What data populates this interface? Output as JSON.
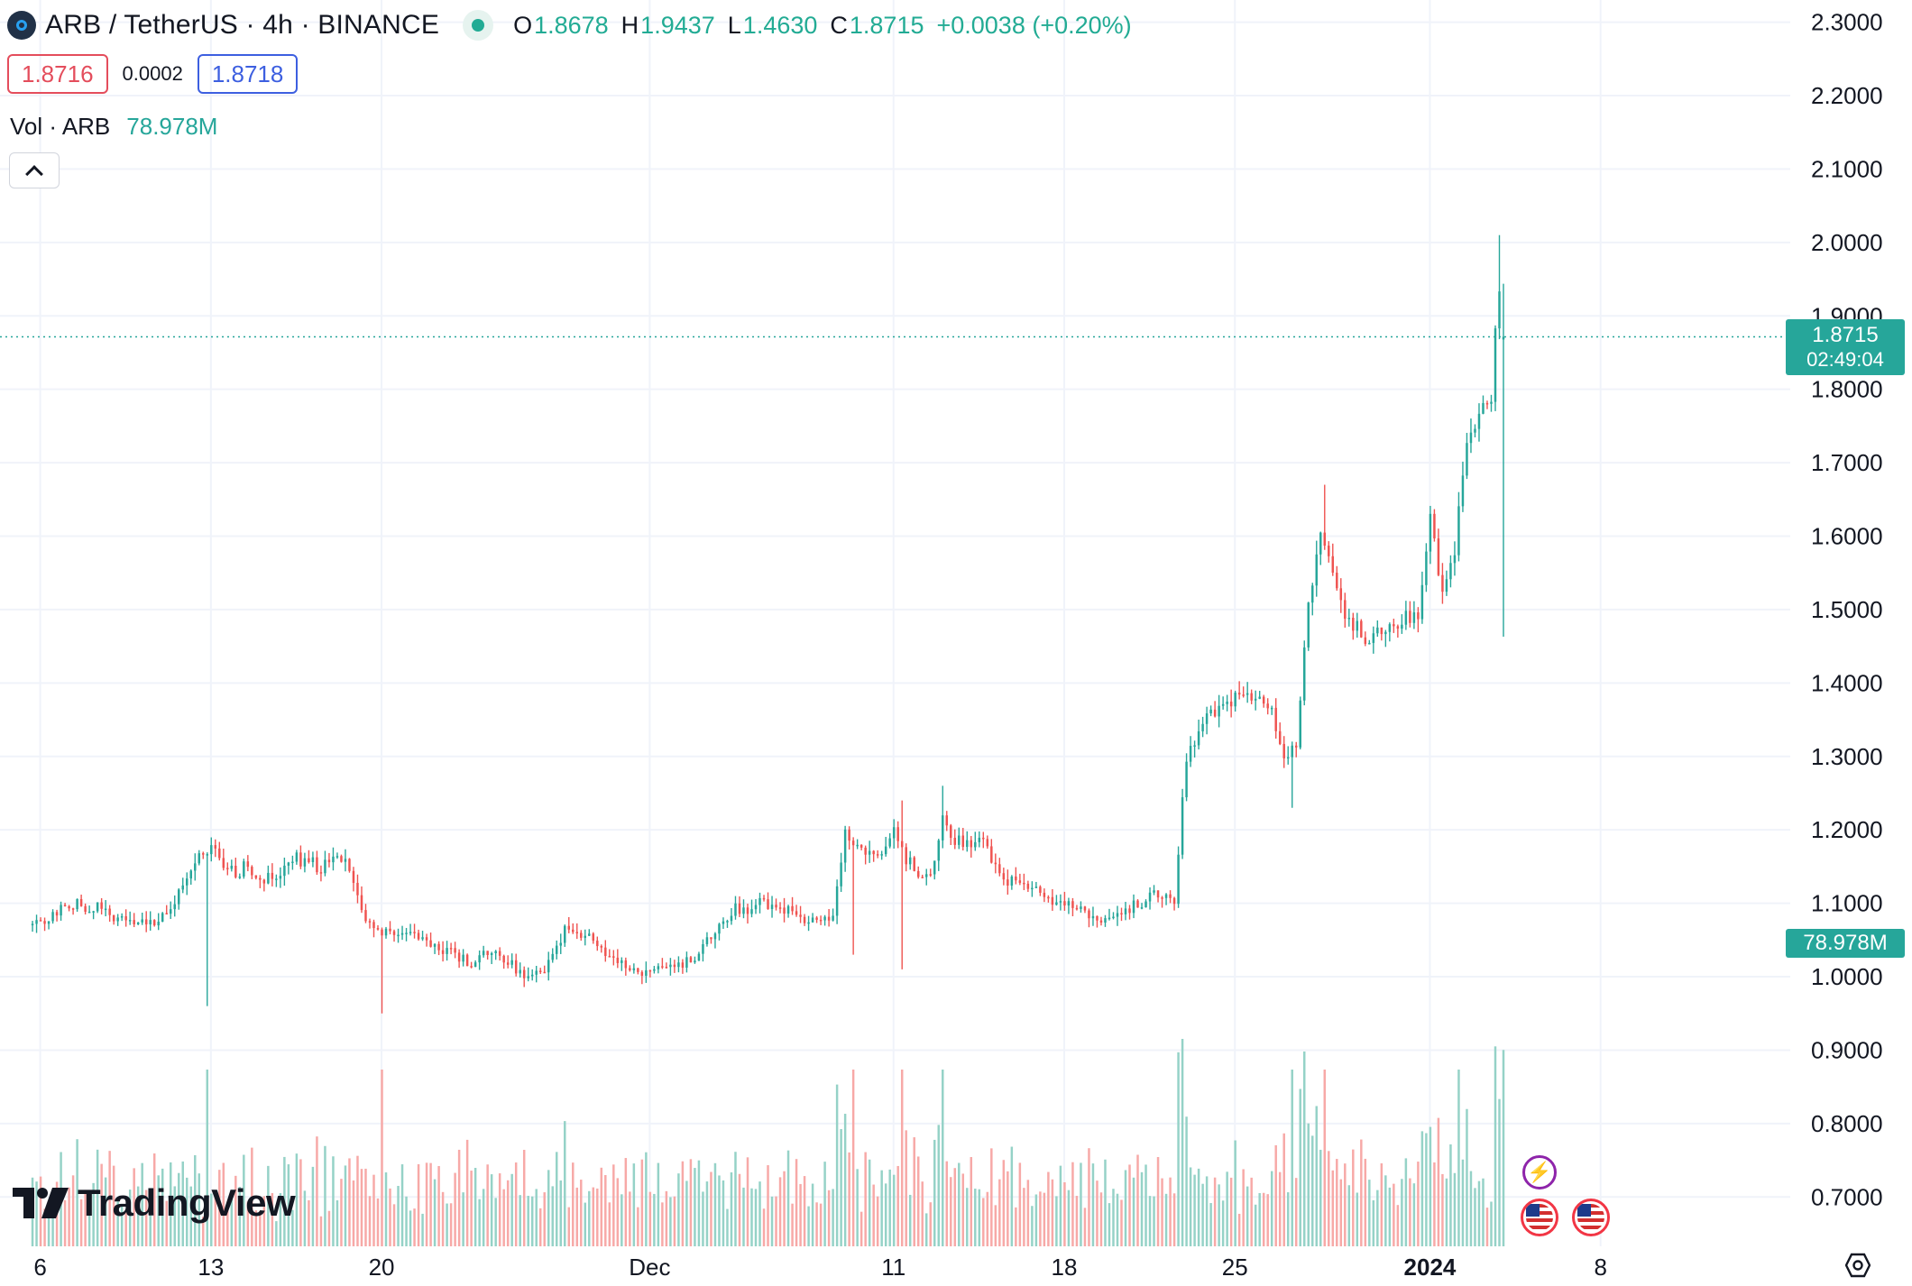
{
  "header": {
    "title": "ARB / TetherUS · 4h · BINANCE",
    "ohlc": [
      {
        "key": "O",
        "value": "1.8678"
      },
      {
        "key": "H",
        "value": "1.9437"
      },
      {
        "key": "L",
        "value": "1.4630"
      },
      {
        "key": "C",
        "value": "1.8715"
      }
    ],
    "change": "+0.0038 (+0.20%)",
    "status_color": "#22ab94"
  },
  "quote": {
    "sell": "1.8716",
    "spread": "0.0002",
    "buy": "1.8718"
  },
  "volume_legend": {
    "label": "Vol · ARB",
    "value": "78.978M"
  },
  "last_price": {
    "price": "1.8715",
    "countdown": "02:49:04",
    "color": "#26a69a"
  },
  "volume_tag": "78.978M",
  "brand": "TradingView",
  "icons": [
    "arbitrum-logo-icon",
    "chevron-up-icon",
    "lightning-icon",
    "us-flag-icon",
    "settings-icon",
    "tradingview-logo-icon"
  ],
  "colors": {
    "up": "#26a69a",
    "down": "#ef5350",
    "up_volume": "#95d2c7",
    "down_volume": "#f7a9a7",
    "grid": "#f0f3fa"
  },
  "chart_data": {
    "type": "candlestick",
    "symbol": "ARB / TetherUS",
    "interval": "4h",
    "ylim": [
      0.677,
      2.313
    ],
    "y_ticks": [
      "2.3000",
      "2.2000",
      "2.1000",
      "2.0000",
      "1.9000",
      "1.8000",
      "1.7000",
      "1.6000",
      "1.5000",
      "1.4000",
      "1.3000",
      "1.2000",
      "1.1000",
      "1.0000",
      "0.9000",
      "0.8000",
      "0.7000"
    ],
    "x_ticks": [
      {
        "label": "6",
        "x": 0.4,
        "bold": false
      },
      {
        "label": "13",
        "x": 7.4,
        "bold": false
      },
      {
        "label": "20",
        "x": 14.4,
        "bold": false
      },
      {
        "label": "Dec",
        "x": 25.4,
        "bold": false
      },
      {
        "label": "11",
        "x": 35.4,
        "bold": false
      },
      {
        "label": "18",
        "x": 42.4,
        "bold": false
      },
      {
        "label": "25",
        "x": 49.4,
        "bold": false
      },
      {
        "label": "2024",
        "x": 57.4,
        "bold": true
      },
      {
        "label": "8",
        "x": 64.4,
        "bold": false
      }
    ],
    "x_unit": "days since Nov 6",
    "xlim": [
      -1.25,
      72.18
    ],
    "candles_per_day": 6,
    "anchors": [
      [
        0,
        1.07
      ],
      [
        2,
        1.1
      ],
      [
        4,
        1.08
      ],
      [
        5,
        1.07
      ],
      [
        6,
        1.1
      ],
      [
        7,
        1.16
      ],
      [
        7.5,
        1.18
      ],
      [
        8,
        1.14
      ],
      [
        9,
        1.15
      ],
      [
        10,
        1.13
      ],
      [
        11,
        1.16
      ],
      [
        12,
        1.15
      ],
      [
        13,
        1.16
      ],
      [
        14,
        1.07
      ],
      [
        15,
        1.05
      ],
      [
        16,
        1.06
      ],
      [
        17,
        1.04
      ],
      [
        18,
        1.02
      ],
      [
        19,
        1.03
      ],
      [
        20,
        1.01
      ],
      [
        21,
        1.0
      ],
      [
        22,
        1.06
      ],
      [
        23,
        1.05
      ],
      [
        24,
        1.02
      ],
      [
        25,
        1.0
      ],
      [
        26,
        1.01
      ],
      [
        27,
        1.02
      ],
      [
        28,
        1.05
      ],
      [
        29,
        1.09
      ],
      [
        30,
        1.1
      ],
      [
        31,
        1.09
      ],
      [
        32,
        1.07
      ],
      [
        33,
        1.08
      ],
      [
        33.5,
        1.19
      ],
      [
        34,
        1.17
      ],
      [
        35,
        1.16
      ],
      [
        35.5,
        1.2
      ],
      [
        36,
        1.16
      ],
      [
        37,
        1.13
      ],
      [
        37.5,
        1.21
      ],
      [
        38,
        1.18
      ],
      [
        39,
        1.19
      ],
      [
        40,
        1.13
      ],
      [
        41,
        1.12
      ],
      [
        42,
        1.1
      ],
      [
        43,
        1.09
      ],
      [
        44,
        1.07
      ],
      [
        45,
        1.09
      ],
      [
        46,
        1.11
      ],
      [
        47,
        1.1
      ],
      [
        47.5,
        1.3
      ],
      [
        48,
        1.34
      ],
      [
        49,
        1.37
      ],
      [
        50,
        1.38
      ],
      [
        51,
        1.36
      ],
      [
        51.5,
        1.29
      ],
      [
        52,
        1.31
      ],
      [
        52.5,
        1.5
      ],
      [
        53,
        1.6
      ],
      [
        54,
        1.49
      ],
      [
        55,
        1.46
      ],
      [
        56,
        1.47
      ],
      [
        57,
        1.5
      ],
      [
        57.5,
        1.62
      ],
      [
        58,
        1.52
      ],
      [
        58.5,
        1.58
      ],
      [
        59,
        1.72
      ],
      [
        59.5,
        1.76
      ],
      [
        60,
        1.78
      ],
      [
        60.3,
        1.95
      ],
      [
        60.5,
        1.87
      ]
    ],
    "volume_axis": {
      "min": 0,
      "max": "78.978M"
    },
    "last_close": 1.8715,
    "last_volume": "78.978M",
    "grid": true
  }
}
